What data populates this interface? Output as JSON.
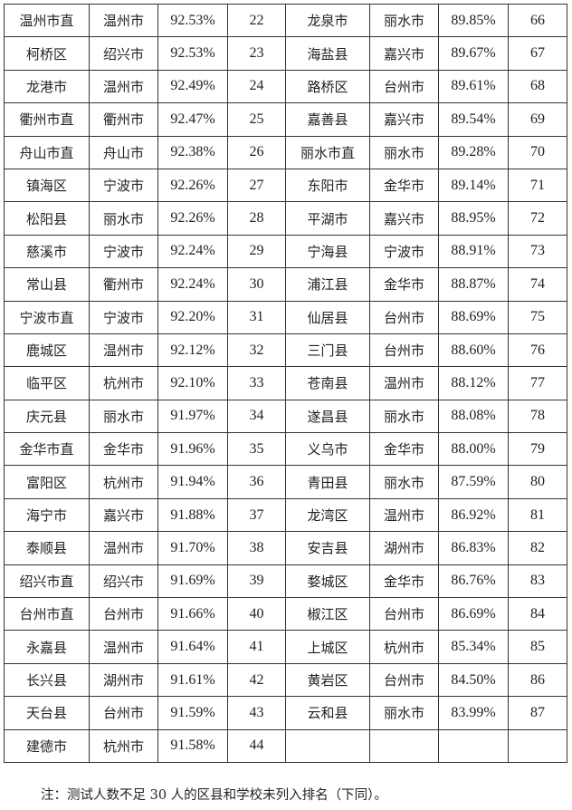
{
  "table": {
    "rows": [
      [
        "温州市直",
        "温州市",
        "92.53%",
        "22",
        "龙泉市",
        "丽水市",
        "89.85%",
        "66"
      ],
      [
        "柯桥区",
        "绍兴市",
        "92.53%",
        "23",
        "海盐县",
        "嘉兴市",
        "89.67%",
        "67"
      ],
      [
        "龙港市",
        "温州市",
        "92.49%",
        "24",
        "路桥区",
        "台州市",
        "89.61%",
        "68"
      ],
      [
        "衢州市直",
        "衢州市",
        "92.47%",
        "25",
        "嘉善县",
        "嘉兴市",
        "89.54%",
        "69"
      ],
      [
        "舟山市直",
        "舟山市",
        "92.38%",
        "26",
        "丽水市直",
        "丽水市",
        "89.28%",
        "70"
      ],
      [
        "镇海区",
        "宁波市",
        "92.26%",
        "27",
        "东阳市",
        "金华市",
        "89.14%",
        "71"
      ],
      [
        "松阳县",
        "丽水市",
        "92.26%",
        "28",
        "平湖市",
        "嘉兴市",
        "88.95%",
        "72"
      ],
      [
        "慈溪市",
        "宁波市",
        "92.24%",
        "29",
        "宁海县",
        "宁波市",
        "88.91%",
        "73"
      ],
      [
        "常山县",
        "衢州市",
        "92.24%",
        "30",
        "浦江县",
        "金华市",
        "88.87%",
        "74"
      ],
      [
        "宁波市直",
        "宁波市",
        "92.20%",
        "31",
        "仙居县",
        "台州市",
        "88.69%",
        "75"
      ],
      [
        "鹿城区",
        "温州市",
        "92.12%",
        "32",
        "三门县",
        "台州市",
        "88.60%",
        "76"
      ],
      [
        "临平区",
        "杭州市",
        "92.10%",
        "33",
        "苍南县",
        "温州市",
        "88.12%",
        "77"
      ],
      [
        "庆元县",
        "丽水市",
        "91.97%",
        "34",
        "遂昌县",
        "丽水市",
        "88.08%",
        "78"
      ],
      [
        "金华市直",
        "金华市",
        "91.96%",
        "35",
        "义乌市",
        "金华市",
        "88.00%",
        "79"
      ],
      [
        "富阳区",
        "杭州市",
        "91.94%",
        "36",
        "青田县",
        "丽水市",
        "87.59%",
        "80"
      ],
      [
        "海宁市",
        "嘉兴市",
        "91.88%",
        "37",
        "龙湾区",
        "温州市",
        "86.92%",
        "81"
      ],
      [
        "泰顺县",
        "温州市",
        "91.70%",
        "38",
        "安吉县",
        "湖州市",
        "86.83%",
        "82"
      ],
      [
        "绍兴市直",
        "绍兴市",
        "91.69%",
        "39",
        "婺城区",
        "金华市",
        "86.76%",
        "83"
      ],
      [
        "台州市直",
        "台州市",
        "91.66%",
        "40",
        "椒江区",
        "台州市",
        "86.69%",
        "84"
      ],
      [
        "永嘉县",
        "温州市",
        "91.64%",
        "41",
        "上城区",
        "杭州市",
        "85.34%",
        "85"
      ],
      [
        "长兴县",
        "湖州市",
        "91.61%",
        "42",
        "黄岩区",
        "台州市",
        "84.50%",
        "86"
      ],
      [
        "天台县",
        "台州市",
        "91.59%",
        "43",
        "云和县",
        "丽水市",
        "83.99%",
        "87"
      ],
      [
        "建德市",
        "杭州市",
        "91.58%",
        "44",
        "",
        "",
        "",
        ""
      ]
    ]
  },
  "note": "注：测试人数不足 30 人的区县和学校未列入排名（下同）。"
}
